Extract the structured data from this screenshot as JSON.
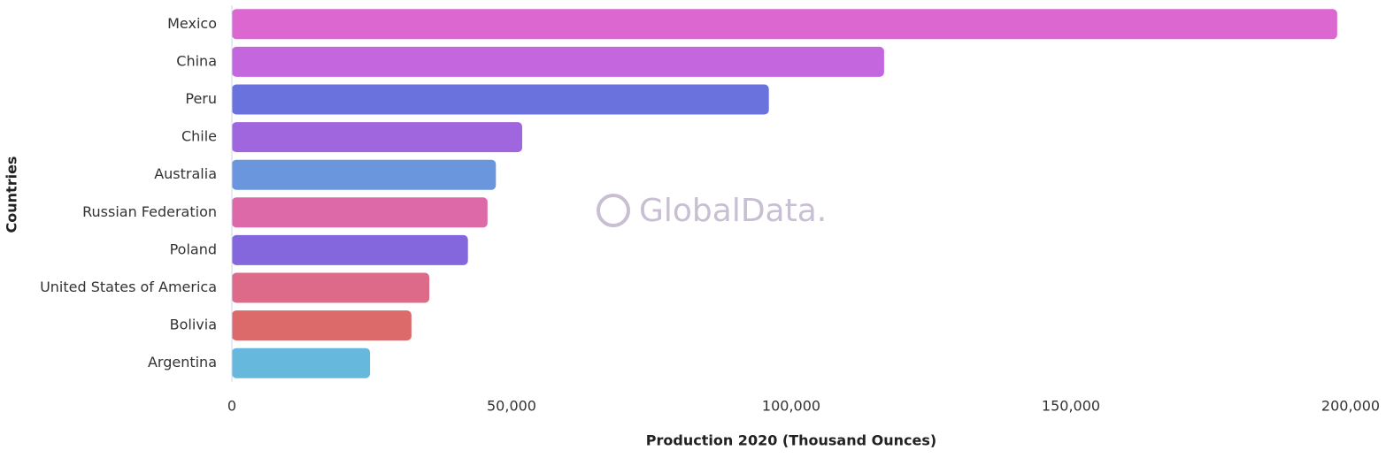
{
  "chart_data": {
    "type": "hbar",
    "x_label": "Production 2020 (Thousand Ounces)",
    "y_label": "Countries",
    "watermark": "GlobalData.",
    "categories": [
      "Mexico",
      "China",
      "Peru",
      "Chile",
      "Australia",
      "Russian Federation",
      "Poland",
      "United States of America",
      "Bolivia",
      "Argentina"
    ],
    "values": [
      197600,
      116600,
      96000,
      51900,
      47200,
      45700,
      42200,
      35300,
      32100,
      24700
    ],
    "colors": [
      "#dc67d1",
      "#c466dd",
      "#6a73dd",
      "#a066dd",
      "#6a96dd",
      "#dd69a8",
      "#8467dd",
      "#dd6a88",
      "#dd6a6a",
      "#67b8dd"
    ],
    "xlim": [
      0,
      200000
    ],
    "xticks": [
      0,
      {
        "value": 50000,
        "label": "50,000"
      },
      {
        "value": 100000,
        "label": "100,000"
      },
      {
        "value": 150000,
        "label": "150,000"
      },
      {
        "value": 200000,
        "label": "200,000"
      }
    ]
  }
}
